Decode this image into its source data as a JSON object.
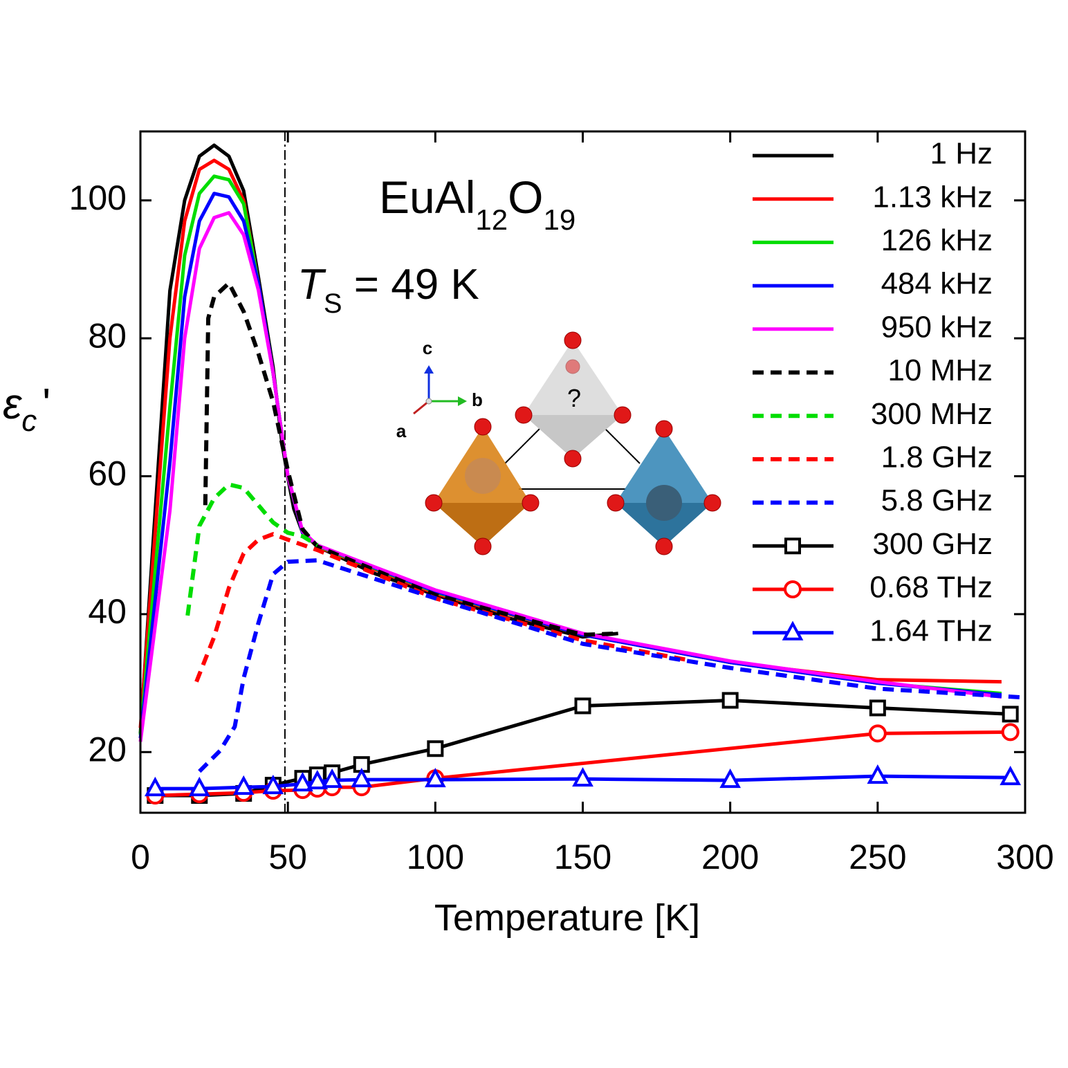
{
  "chart_data": {
    "type": "line",
    "xlabel": "Temperature [K]",
    "ylabel": [
      "ε",
      "c",
      "'"
    ],
    "xlim": [
      0,
      300
    ],
    "ylim": [
      11.2,
      110
    ],
    "xticks": [
      0,
      50,
      100,
      150,
      200,
      250,
      300
    ],
    "yticks": [
      20,
      40,
      60,
      80,
      100
    ],
    "formula": [
      "EuAl",
      "12",
      "O",
      "19"
    ],
    "transition": {
      "symbol": "T",
      "sub": "S",
      "text": " = 49 K",
      "x": 49
    },
    "inset": {
      "axes": [
        "c",
        "b",
        "a"
      ],
      "site_label": "?"
    },
    "legend": "upper right",
    "series": [
      {
        "name": "1 Hz",
        "color": "#000000",
        "dash": "solid",
        "marker": "none",
        "x": [
          0,
          10,
          15,
          20,
          25,
          30,
          35,
          40,
          45,
          48,
          50,
          52,
          55,
          60,
          70,
          80,
          100,
          125,
          150,
          162
        ],
        "values": [
          22.7,
          86.9,
          100,
          106.4,
          108,
          106.4,
          101.4,
          88.9,
          75.8,
          64.8,
          59.8,
          55.3,
          51.8,
          49.8,
          47.8,
          45.8,
          42.8,
          39.4,
          36.7,
          37.2
        ]
      },
      {
        "name": "1.13 kHz",
        "color": "#ff0000",
        "dash": "solid",
        "marker": "none",
        "x": [
          0,
          10,
          15,
          20,
          25,
          30,
          35,
          40,
          45,
          50,
          55,
          60,
          100,
          150,
          200,
          250,
          292
        ],
        "values": [
          23.5,
          80,
          97,
          104.5,
          105.8,
          104.5,
          100,
          88,
          75,
          60,
          51.8,
          49.8,
          43,
          37,
          33,
          30.5,
          30.2
        ]
      },
      {
        "name": "126 kHz",
        "color": "#00dd00",
        "dash": "solid",
        "marker": "none",
        "x": [
          0,
          10,
          15,
          20,
          25,
          30,
          35,
          40,
          45,
          50,
          55,
          60,
          100,
          150,
          200,
          250,
          292
        ],
        "values": [
          22.5,
          70,
          92,
          101,
          103.5,
          103,
          99.5,
          88,
          75,
          60,
          51.8,
          49.9,
          43.2,
          37,
          33,
          30,
          28.5
        ]
      },
      {
        "name": "484 kHz",
        "color": "#0000ff",
        "dash": "solid",
        "marker": "none",
        "x": [
          0,
          10,
          15,
          20,
          25,
          30,
          35,
          40,
          45,
          50,
          55,
          60,
          100,
          150,
          200,
          250,
          292
        ],
        "values": [
          22,
          62,
          86,
          97,
          101,
          100.5,
          97,
          88,
          75,
          60,
          51.8,
          50,
          43.3,
          37,
          33,
          30,
          28.3
        ]
      },
      {
        "name": "950 kHz",
        "color": "#ff00ff",
        "dash": "solid",
        "marker": "none",
        "x": [
          0,
          10,
          15,
          20,
          25,
          30,
          35,
          40,
          45,
          50,
          55,
          60,
          100,
          150,
          200,
          250,
          292
        ],
        "values": [
          21.5,
          55,
          80,
          93,
          97.5,
          98.2,
          95,
          87,
          75,
          60,
          52,
          50,
          43.5,
          37.2,
          33.2,
          30.2,
          28
        ]
      },
      {
        "name": "10 MHz",
        "color": "#000000",
        "dash": "dashed",
        "marker": "none",
        "x": [
          22,
          23,
          25,
          30,
          35,
          40,
          45,
          50,
          55,
          60,
          100,
          150,
          162
        ],
        "values": [
          55.8,
          82.9,
          86,
          88,
          83.9,
          77.8,
          70.8,
          60.8,
          52.3,
          49.8,
          42.8,
          37,
          37.2
        ]
      },
      {
        "name": "300 MHz",
        "color": "#00dd00",
        "dash": "dashed",
        "marker": "none",
        "x": [
          16,
          20,
          25,
          30,
          35,
          40,
          45,
          50,
          55,
          60
        ],
        "values": [
          39.8,
          52.8,
          56.8,
          58.8,
          58.3,
          55.8,
          53.3,
          51.8,
          51.3,
          50
        ]
      },
      {
        "name": "1.8 GHz",
        "color": "#ff0000",
        "dash": "dashed",
        "marker": "none",
        "x": [
          19,
          25,
          30,
          35,
          40,
          45,
          50,
          60,
          100,
          150,
          185
        ],
        "values": [
          30.2,
          36.7,
          43.8,
          48.8,
          50.8,
          51.6,
          50.8,
          49.3,
          42.3,
          36.2,
          33.4
        ]
      },
      {
        "name": "5.8 GHz",
        "color": "#0000ff",
        "dash": "dashed",
        "marker": "none",
        "x": [
          20,
          27,
          32,
          35,
          40,
          45,
          50,
          60,
          100,
          150,
          200,
          250,
          300
        ],
        "values": [
          17.2,
          20.2,
          23.7,
          30.7,
          38.7,
          45.8,
          47.6,
          47.8,
          42.3,
          35.7,
          32.2,
          29.2,
          27.9
        ]
      },
      {
        "name": "300 GHz",
        "color": "#000000",
        "dash": "solid",
        "marker": "square",
        "x": [
          5,
          20,
          35,
          45,
          55,
          60,
          65,
          75,
          100,
          150,
          200,
          250,
          295
        ],
        "values": [
          13.7,
          13.7,
          14,
          15.2,
          16.2,
          16.7,
          17,
          18.2,
          20.5,
          26.7,
          27.5,
          26.4,
          25.5
        ]
      },
      {
        "name": "0.68 THz",
        "color": "#ff0000",
        "dash": "solid",
        "marker": "circle",
        "x": [
          5,
          20,
          35,
          45,
          55,
          60,
          65,
          75,
          100,
          250,
          295
        ],
        "values": [
          13.7,
          13.9,
          14.1,
          14.4,
          14.5,
          14.7,
          14.9,
          14.9,
          16.2,
          22.7,
          22.9
        ]
      },
      {
        "name": "1.64 THz",
        "color": "#0000ff",
        "dash": "solid",
        "marker": "triangle",
        "x": [
          5,
          20,
          35,
          45,
          55,
          60,
          65,
          75,
          100,
          150,
          200,
          250,
          295
        ],
        "values": [
          14.7,
          14.7,
          14.9,
          15,
          15.4,
          15.7,
          15.9,
          16,
          16,
          16.1,
          15.9,
          16.5,
          16.3
        ]
      }
    ]
  }
}
